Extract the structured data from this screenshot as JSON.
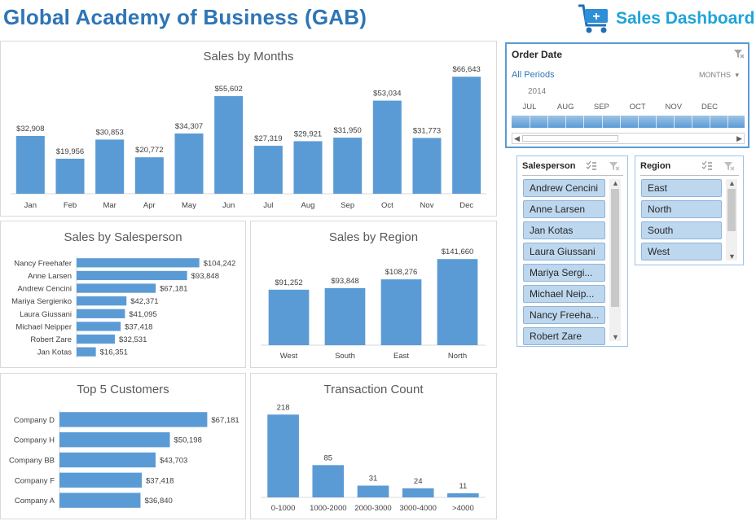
{
  "header": {
    "title": "Global Academy of Business (GAB)",
    "brand": "Sales Dashboard"
  },
  "colors": {
    "bar": "#5b9bd5",
    "title": "#2e75b6",
    "brand": "#1fa4d9",
    "slicer_item": "#bdd7ee"
  },
  "timeline": {
    "title": "Order Date",
    "period": "All Periods",
    "level": "MONTHS",
    "year": "2014",
    "months": [
      "JUL",
      "AUG",
      "SEP",
      "OCT",
      "NOV",
      "DEC"
    ]
  },
  "salesperson_slicer": {
    "title": "Salesperson",
    "items": [
      "Andrew Cencini",
      "Anne Larsen",
      "Jan Kotas",
      "Laura Giussani",
      "Mariya Sergi...",
      "Michael Neip...",
      "Nancy Freeha...",
      "Robert Zare"
    ]
  },
  "region_slicer": {
    "title": "Region",
    "items": [
      "East",
      "North",
      "South",
      "West"
    ]
  },
  "chart_data": [
    {
      "id": "months",
      "type": "bar",
      "title": "Sales by Months",
      "categories": [
        "Jan",
        "Feb",
        "Mar",
        "Apr",
        "May",
        "Jun",
        "Jul",
        "Aug",
        "Sep",
        "Oct",
        "Nov",
        "Dec"
      ],
      "values": [
        32908,
        19956,
        30853,
        20772,
        34307,
        55602,
        27319,
        29921,
        31950,
        53034,
        31773,
        66643
      ],
      "labels": [
        "$32,908",
        "$19,956",
        "$30,853",
        "$20,772",
        "$34,307",
        "$55,602",
        "$27,319",
        "$29,921",
        "$31,950",
        "$53,034",
        "$31,773",
        "$66,643"
      ],
      "ylim": [
        0,
        70000
      ]
    },
    {
      "id": "salesperson",
      "type": "bar",
      "orientation": "horizontal",
      "title": "Sales by Salesperson",
      "categories": [
        "Nancy Freehafer",
        "Anne Larsen",
        "Andrew Cencini",
        "Mariya Sergienko",
        "Laura Giussani",
        "Michael Neipper",
        "Robert Zare",
        "Jan Kotas"
      ],
      "values": [
        104242,
        93848,
        67181,
        42371,
        41095,
        37418,
        32531,
        16351
      ],
      "labels": [
        "$104,242",
        "$93,848",
        "$67,181",
        "$42,371",
        "$41,095",
        "$37,418",
        "$32,531",
        "$16,351"
      ],
      "xlim": [
        0,
        110000
      ]
    },
    {
      "id": "region",
      "type": "bar",
      "title": "Sales by Region",
      "categories": [
        "West",
        "South",
        "East",
        "North"
      ],
      "values": [
        91252,
        93848,
        108276,
        141660
      ],
      "labels": [
        "$91,252",
        "$93,848",
        "$108,276",
        "$141,660"
      ],
      "ylim": [
        0,
        150000
      ]
    },
    {
      "id": "customers",
      "type": "bar",
      "orientation": "horizontal",
      "title": "Top 5 Customers",
      "categories": [
        "Company D",
        "Company H",
        "Company BB",
        "Company F",
        "Company A"
      ],
      "values": [
        67181,
        50198,
        43703,
        37418,
        36840
      ],
      "labels": [
        "$67,181",
        "$50,198",
        "$43,703",
        "$37,418",
        "$36,840"
      ],
      "xlim": [
        0,
        70000
      ]
    },
    {
      "id": "transactions",
      "type": "bar",
      "title": "Transaction Count",
      "categories": [
        "0-1000",
        "1000-2000",
        "2000-3000",
        "3000-4000",
        ">4000"
      ],
      "values": [
        218,
        85,
        31,
        24,
        11
      ],
      "labels": [
        "218",
        "85",
        "31",
        "24",
        "11"
      ],
      "ylim": [
        0,
        240
      ]
    }
  ]
}
